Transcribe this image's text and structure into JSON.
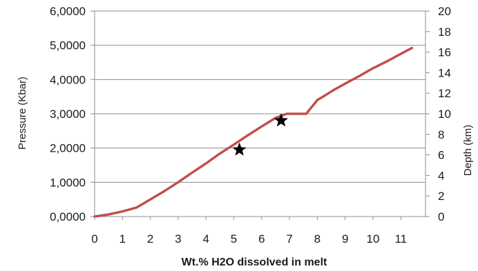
{
  "chart_data": {
    "type": "line",
    "xlabel": "Wt.% H2O dissolved in melt",
    "ylabel": "Pressure (Kbar)",
    "y2label": "Depth (km)",
    "xlim": [
      0,
      12
    ],
    "ylim": [
      0,
      6
    ],
    "y2lim": [
      0,
      20
    ],
    "x_ticks": [
      "0",
      "1",
      "2",
      "3",
      "4",
      "5",
      "6",
      "7",
      "8",
      "9",
      "10",
      "11"
    ],
    "x_tick_values": [
      0,
      1,
      2,
      3,
      4,
      5,
      6,
      7,
      8,
      9,
      10,
      11
    ],
    "y_ticks": [
      "0,0000",
      "1,0000",
      "2,0000",
      "3,0000",
      "4,0000",
      "5,0000",
      "6,0000"
    ],
    "y_tick_values": [
      0,
      1,
      2,
      3,
      4,
      5,
      6
    ],
    "y2_ticks": [
      "0",
      "2",
      "4",
      "6",
      "8",
      "10",
      "12",
      "14",
      "16",
      "18",
      "20"
    ],
    "y2_tick_values": [
      0,
      2,
      4,
      6,
      8,
      10,
      12,
      14,
      16,
      18,
      20
    ],
    "grid": "horizontal",
    "series": [
      {
        "color": "#c0504d",
        "x": [
          0,
          0.5,
          1.0,
          1.5,
          2.0,
          2.5,
          3.0,
          3.5,
          4.0,
          4.5,
          5.0,
          5.5,
          6.0,
          6.5,
          6.9,
          7.2,
          7.6,
          7.8,
          8.0,
          8.2,
          8.6,
          9.0,
          9.5,
          10.0,
          10.5,
          11.0,
          11.4
        ],
        "y": [
          0,
          0.06,
          0.15,
          0.26,
          0.5,
          0.74,
          1.0,
          1.28,
          1.55,
          1.84,
          2.1,
          2.37,
          2.63,
          2.88,
          3.0,
          3.0,
          3.0,
          3.2,
          3.4,
          3.5,
          3.7,
          3.88,
          4.1,
          4.33,
          4.53,
          4.75,
          4.92
        ]
      }
    ],
    "markers": [
      {
        "x": 5.2,
        "y": 1.95,
        "symbol": "star",
        "color": "#000000"
      },
      {
        "x": 6.7,
        "y": 2.8,
        "symbol": "star",
        "color": "#000000"
      }
    ]
  }
}
